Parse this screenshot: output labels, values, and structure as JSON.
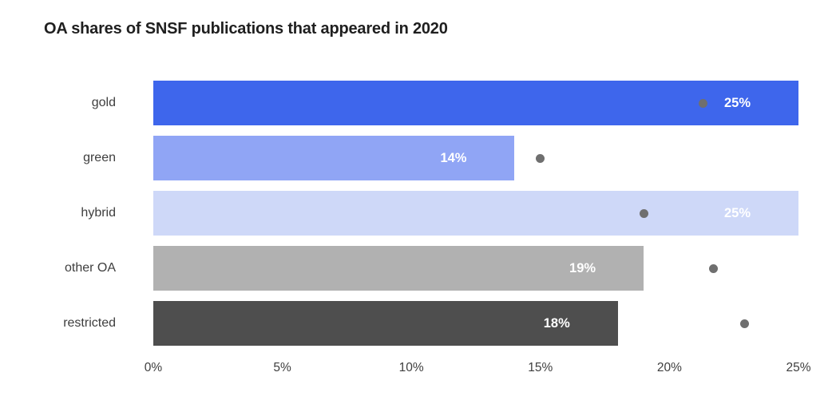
{
  "title": "OA shares of SNSF publications that appeared in 2020",
  "colors": {
    "background": "#ffffff",
    "title_text": "#1f1f1f",
    "axis_text": "#3e3e3e",
    "bar_value_text": "#ffffff",
    "dot": "#6f6f6f"
  },
  "chart_data": {
    "type": "bar",
    "orientation": "horizontal",
    "title": "OA shares of SNSF publications that appeared in 2020",
    "categories": [
      "gold",
      "green",
      "hybrid",
      "other OA",
      "restricted"
    ],
    "series": [
      {
        "name": "bar-share-2020",
        "values": [
          25,
          14,
          25,
          19,
          18
        ],
        "labels": [
          "25%",
          "14%",
          "25%",
          "19%",
          "18%"
        ]
      },
      {
        "name": "comparison-dot",
        "values": [
          21.3,
          15,
          19,
          21.7,
          22.9
        ]
      }
    ],
    "bar_colors": [
      "#3e66ec",
      "#90a5f5",
      "#ced8f8",
      "#b1b1b1",
      "#4e4e4e"
    ],
    "xlabel": "",
    "ylabel": "",
    "xlim": [
      0,
      25
    ],
    "x_tick_values": [
      0,
      5,
      10,
      15,
      20,
      25
    ],
    "x_ticks": [
      "0%",
      "5%",
      "10%",
      "15%",
      "20%",
      "25%"
    ],
    "grid": false,
    "legend": false
  }
}
